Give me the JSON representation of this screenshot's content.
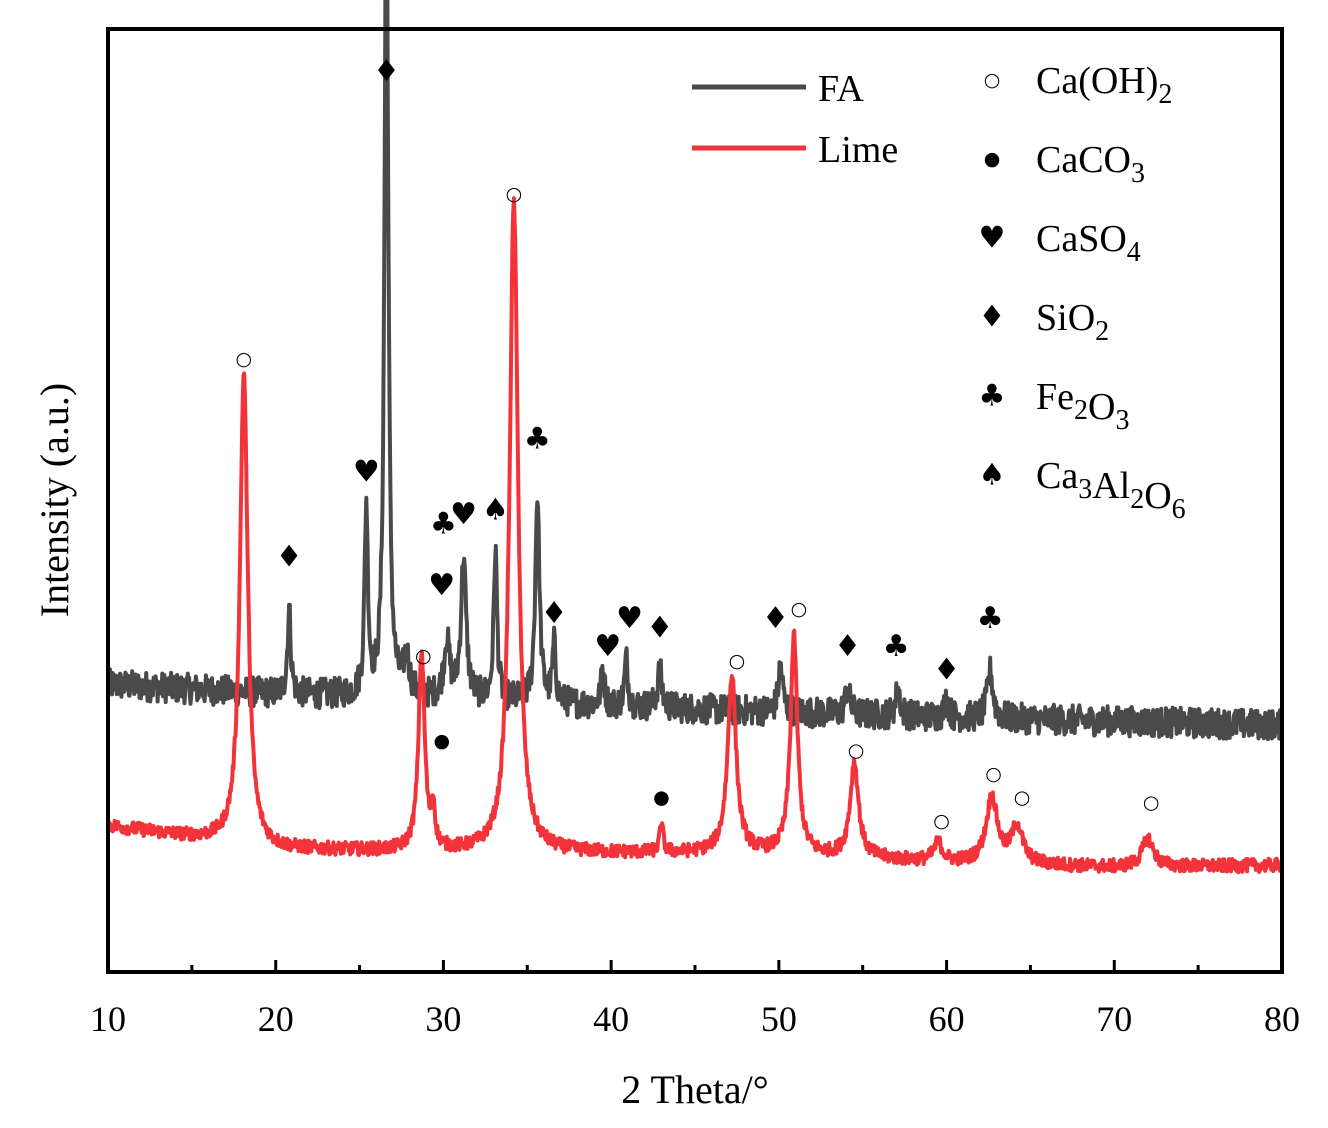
{
  "chart_data": {
    "type": "line",
    "title": "",
    "xlabel": "2 Theta/°",
    "ylabel": "Intensity (a.u.)",
    "xlim": [
      10,
      80
    ],
    "ylim": [
      0,
      100
    ],
    "xticks": [
      10,
      20,
      30,
      40,
      50,
      60,
      70,
      80
    ],
    "series": [
      {
        "name": "FA",
        "color": "#4a4a4a",
        "baseline": [
          [
            10,
            30.5
          ],
          [
            20,
            29.5
          ],
          [
            30,
            29.0
          ],
          [
            40,
            28.2
          ],
          [
            50,
            27.6
          ],
          [
            60,
            27.0
          ],
          [
            70,
            26.6
          ],
          [
            80,
            26.2
          ]
        ],
        "noise": 1.6,
        "peaks": [
          {
            "x": 20.8,
            "h": 9,
            "w": 0.12
          },
          {
            "x": 25.4,
            "h": 20,
            "w": 0.12
          },
          {
            "x": 26.6,
            "h": 91,
            "w": 0.13
          },
          {
            "x": 27.8,
            "h": 4,
            "w": 0.2
          },
          {
            "x": 30.2,
            "h": 6,
            "w": 0.2
          },
          {
            "x": 31.2,
            "h": 15,
            "w": 0.18
          },
          {
            "x": 33.1,
            "h": 16,
            "w": 0.12
          },
          {
            "x": 35.6,
            "h": 22,
            "w": 0.15
          },
          {
            "x": 36.6,
            "h": 6,
            "w": 0.12
          },
          {
            "x": 39.5,
            "h": 4,
            "w": 0.12
          },
          {
            "x": 40.9,
            "h": 5,
            "w": 0.12
          },
          {
            "x": 42.9,
            "h": 4,
            "w": 0.15
          },
          {
            "x": 50.1,
            "h": 5,
            "w": 0.15
          },
          {
            "x": 54.1,
            "h": 3,
            "w": 0.15
          },
          {
            "x": 57.1,
            "h": 3,
            "w": 0.15
          },
          {
            "x": 60.0,
            "h": 2,
            "w": 0.15
          },
          {
            "x": 62.6,
            "h": 5,
            "w": 0.2
          }
        ]
      },
      {
        "name": "Lime",
        "color": "#f2333a",
        "baseline": [
          [
            10,
            15.5
          ],
          [
            20,
            13.0
          ],
          [
            30,
            12.7
          ],
          [
            40,
            12.6
          ],
          [
            50,
            12.5
          ],
          [
            60,
            11.6
          ],
          [
            70,
            11.1
          ],
          [
            80,
            11.3
          ]
        ],
        "noise": 0.7,
        "peaks": [
          {
            "x": 18.1,
            "h": 50,
            "w": 0.28
          },
          {
            "x": 28.7,
            "h": 21,
            "w": 0.22
          },
          {
            "x": 29.4,
            "h": 4,
            "w": 0.12
          },
          {
            "x": 34.2,
            "h": 69,
            "w": 0.3
          },
          {
            "x": 43.0,
            "h": 3,
            "w": 0.12
          },
          {
            "x": 47.2,
            "h": 19,
            "w": 0.3
          },
          {
            "x": 50.9,
            "h": 23,
            "w": 0.25
          },
          {
            "x": 54.5,
            "h": 10,
            "w": 0.3
          },
          {
            "x": 59.5,
            "h": 2,
            "w": 0.3
          },
          {
            "x": 62.7,
            "h": 7,
            "w": 0.4
          },
          {
            "x": 64.2,
            "h": 4,
            "w": 0.4
          },
          {
            "x": 72.0,
            "h": 3,
            "w": 0.4
          }
        ]
      }
    ],
    "annotations": [
      {
        "symbol": "♦",
        "x": 26.6,
        "y": 95.5,
        "series": "FA"
      },
      {
        "symbol": "♥",
        "x": 25.4,
        "y": 53.0,
        "series": "FA"
      },
      {
        "symbol": "♦",
        "x": 20.8,
        "y": 44.0,
        "series": "FA"
      },
      {
        "symbol": "♣",
        "x": 30.0,
        "y": 47.5,
        "series": "FA"
      },
      {
        "symbol": "♥",
        "x": 31.2,
        "y": 48.5,
        "series": "FA"
      },
      {
        "symbol": "♠",
        "x": 33.1,
        "y": 49.0,
        "series": "FA"
      },
      {
        "symbol": "♥",
        "x": 29.9,
        "y": 41.0,
        "series": "FA"
      },
      {
        "symbol": "♣",
        "x": 35.6,
        "y": 56.5,
        "series": "FA"
      },
      {
        "symbol": "♦",
        "x": 36.6,
        "y": 38.0,
        "series": "FA"
      },
      {
        "symbol": "♥",
        "x": 41.1,
        "y": 37.5,
        "series": "FA"
      },
      {
        "symbol": "♥",
        "x": 39.8,
        "y": 34.5,
        "series": "FA"
      },
      {
        "symbol": "♦",
        "x": 42.9,
        "y": 36.5,
        "series": "FA"
      },
      {
        "symbol": "♦",
        "x": 49.8,
        "y": 37.5,
        "series": "FA"
      },
      {
        "symbol": "♦",
        "x": 54.1,
        "y": 34.5,
        "series": "FA"
      },
      {
        "symbol": "♣",
        "x": 57.0,
        "y": 34.5,
        "series": "FA"
      },
      {
        "symbol": "♦",
        "x": 60.0,
        "y": 32.0,
        "series": "FA"
      },
      {
        "symbol": "♣",
        "x": 62.6,
        "y": 37.5,
        "series": "FA"
      },
      {
        "symbol": "○",
        "x": 18.1,
        "y": 65.0,
        "series": "Lime"
      },
      {
        "symbol": "○",
        "x": 28.8,
        "y": 33.5,
        "series": "Lime"
      },
      {
        "symbol": "●",
        "x": 29.9,
        "y": 24.5,
        "series": "Lime"
      },
      {
        "symbol": "○",
        "x": 34.2,
        "y": 82.5,
        "series": "Lime"
      },
      {
        "symbol": "●",
        "x": 43.0,
        "y": 18.5,
        "series": "Lime"
      },
      {
        "symbol": "○",
        "x": 47.5,
        "y": 33.0,
        "series": "Lime"
      },
      {
        "symbol": "○",
        "x": 51.2,
        "y": 38.5,
        "series": "Lime"
      },
      {
        "symbol": "○",
        "x": 54.6,
        "y": 23.5,
        "series": "Lime"
      },
      {
        "symbol": "○",
        "x": 59.7,
        "y": 16.0,
        "series": "Lime"
      },
      {
        "symbol": "○",
        "x": 62.8,
        "y": 21.0,
        "series": "Lime"
      },
      {
        "symbol": "○",
        "x": 64.5,
        "y": 18.5,
        "series": "Lime"
      },
      {
        "symbol": "○",
        "x": 72.2,
        "y": 18.0,
        "series": "Lime"
      }
    ],
    "legend": {
      "placement": "top-right",
      "lines": [
        {
          "label": "FA",
          "color": "#4a4a4a"
        },
        {
          "label": "Lime",
          "color": "#f2333a"
        }
      ],
      "phases": [
        {
          "symbol": "○",
          "parts": [
            {
              "t": "Ca(OH)"
            },
            {
              "t": "2",
              "sub": true
            }
          ]
        },
        {
          "symbol": "●",
          "parts": [
            {
              "t": "CaCO"
            },
            {
              "t": "3",
              "sub": true
            }
          ]
        },
        {
          "symbol": "♥",
          "parts": [
            {
              "t": "CaSO"
            },
            {
              "t": "4",
              "sub": true
            }
          ]
        },
        {
          "symbol": "♦",
          "parts": [
            {
              "t": "SiO"
            },
            {
              "t": "2",
              "sub": true
            }
          ]
        },
        {
          "symbol": "♣",
          "parts": [
            {
              "t": "Fe"
            },
            {
              "t": "2",
              "sub": true
            },
            {
              "t": "O"
            },
            {
              "t": "3",
              "sub": true
            }
          ]
        },
        {
          "symbol": "♠",
          "parts": [
            {
              "t": "Ca"
            },
            {
              "t": "3",
              "sub": true
            },
            {
              "t": "Al"
            },
            {
              "t": "2",
              "sub": true
            },
            {
              "t": "O"
            },
            {
              "t": "6",
              "sub": true
            }
          ]
        }
      ]
    }
  }
}
